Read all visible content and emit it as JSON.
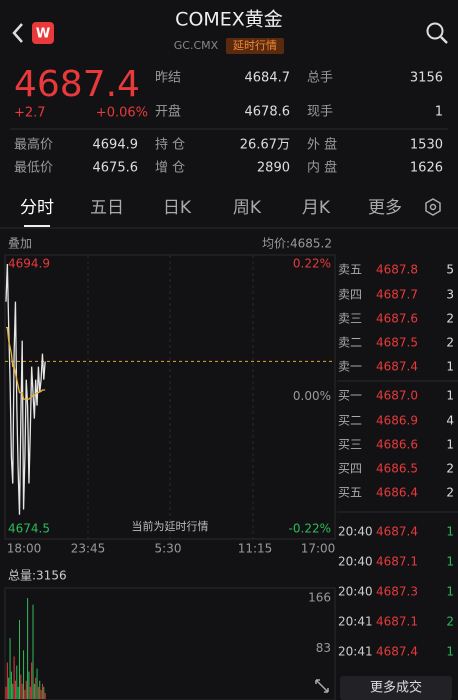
{
  "header": {
    "title": "COMEX黄金",
    "code": "GC.CMX",
    "tag": "延时行情"
  },
  "quote": {
    "price": "4687.4",
    "change": "+2.7",
    "change_pct": "+0.06%",
    "stats": [
      {
        "label": "昨结",
        "value": "4684.7"
      },
      {
        "label": "总手",
        "value": "3156"
      },
      {
        "label": "开盘",
        "value": "4678.6"
      },
      {
        "label": "现手",
        "value": "1"
      },
      {
        "label": "最高价",
        "value": "4694.9"
      },
      {
        "label": "持 仓",
        "value": "26.67万"
      },
      {
        "label": "外 盘",
        "value": "1530"
      },
      {
        "label": "最低价",
        "value": "4675.6"
      },
      {
        "label": "增 仓",
        "value": "2890"
      },
      {
        "label": "内 盘",
        "value": "1626"
      }
    ]
  },
  "tabs": [
    "分时",
    "五日",
    "日K",
    "周K",
    "月K",
    "更多"
  ],
  "intraday": {
    "overlay": "叠加",
    "avg_label": "均价:4685.2",
    "notice": "当前为延时行情",
    "ylim": [
      4674.5,
      4694.9
    ],
    "yticks": [
      4694.9,
      4674.5
    ],
    "pct_ticks": [
      {
        "value": 0.22,
        "label": "0.22%"
      },
      {
        "value": 0,
        "label": "0.00%"
      },
      {
        "value": -0.22,
        "label": "-0.22%"
      }
    ],
    "times": [
      "18:00",
      "23:45",
      "5:30",
      "11:15",
      "17:00"
    ],
    "prices": [
      4692,
      4694.9,
      4690,
      4686,
      4680,
      4678,
      4688,
      4692,
      4684,
      4679,
      4675.6,
      4683,
      4689,
      4676,
      4680,
      4686,
      4684,
      4678,
      4682,
      4687,
      4685,
      4683,
      4686,
      4684,
      4687,
      4685,
      4686,
      4688,
      4686,
      4687.4
    ],
    "avg": [
      4690,
      4690,
      4689,
      4688.5,
      4688,
      4687,
      4687,
      4686.5,
      4686,
      4685.5,
      4685,
      4685,
      4685,
      4684.5,
      4684.5,
      4684.5,
      4684.5,
      4684.5,
      4684.6,
      4684.7,
      4684.8,
      4684.8,
      4684.9,
      4685,
      4685,
      4685.1,
      4685.1,
      4685.2,
      4685.2,
      4685.2
    ]
  },
  "volume": {
    "total_label": "总量:3156",
    "ylim": [
      0,
      166
    ],
    "yticks": [
      166,
      83
    ],
    "values": [
      20,
      60,
      35,
      100,
      45,
      25,
      70,
      30,
      55,
      20,
      130,
      40,
      25,
      80,
      15,
      30,
      166,
      45,
      20,
      60,
      155,
      25,
      35,
      50,
      20,
      30,
      15,
      25,
      20,
      10
    ]
  },
  "order_book": {
    "asks": [
      {
        "label": "卖五",
        "price": "4687.8",
        "volume": "5"
      },
      {
        "label": "卖四",
        "price": "4687.7",
        "volume": "3"
      },
      {
        "label": "卖三",
        "price": "4687.6",
        "volume": "2"
      },
      {
        "label": "卖二",
        "price": "4687.5",
        "volume": "2"
      },
      {
        "label": "卖一",
        "price": "4687.4",
        "volume": "1"
      }
    ],
    "bids": [
      {
        "label": "买一",
        "price": "4687.0",
        "volume": "1"
      },
      {
        "label": "买二",
        "price": "4686.9",
        "volume": "4"
      },
      {
        "label": "买三",
        "price": "4686.6",
        "volume": "1"
      },
      {
        "label": "买四",
        "price": "4686.5",
        "volume": "2"
      },
      {
        "label": "买五",
        "price": "4686.4",
        "volume": "2"
      }
    ]
  },
  "trades": [
    {
      "time": "20:40",
      "price": "4687.4",
      "volume": "1"
    },
    {
      "time": "20:40",
      "price": "4687.1",
      "volume": "1"
    },
    {
      "time": "20:40",
      "price": "4687.3",
      "volume": "1"
    },
    {
      "time": "20:41",
      "price": "4687.1",
      "volume": "2"
    },
    {
      "time": "20:41",
      "price": "4687.4",
      "volume": "1"
    }
  ],
  "more_trades": "更多成交"
}
